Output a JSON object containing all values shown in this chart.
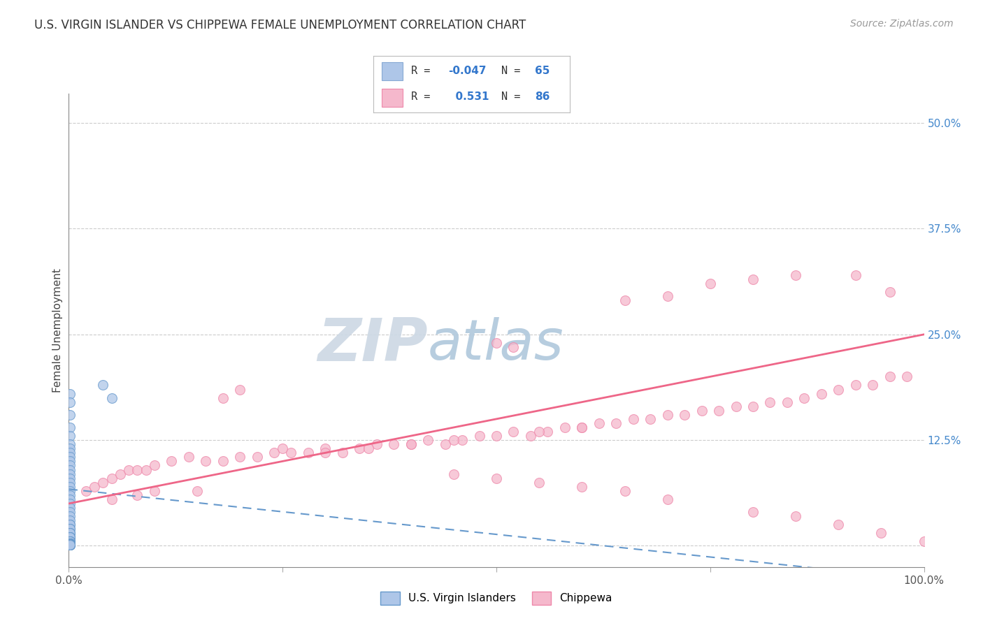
{
  "title": "U.S. VIRGIN ISLANDER VS CHIPPEWA FEMALE UNEMPLOYMENT CORRELATION CHART",
  "source": "Source: ZipAtlas.com",
  "ylabel": "Female Unemployment",
  "yticks": [
    0.0,
    0.125,
    0.25,
    0.375,
    0.5
  ],
  "ytick_labels": [
    "",
    "12.5%",
    "25.0%",
    "37.5%",
    "50.0%"
  ],
  "xlim": [
    0.0,
    1.0
  ],
  "ylim": [
    -0.02,
    0.535
  ],
  "ylim_display": [
    0.0,
    0.535
  ],
  "series1_color": "#aec6e8",
  "series2_color": "#f5b8cc",
  "series1_edge": "#6699cc",
  "series2_edge": "#ee88aa",
  "trend1_color": "#6699cc",
  "trend2_color": "#ee6688",
  "watermark_zip_color": "#d0dce8",
  "watermark_atlas_color": "#b8cce0",
  "background_color": "#ffffff",
  "grid_color": "#cccccc",
  "title_fontsize": 12,
  "source_fontsize": 10,
  "marker_size": 100,
  "legend_R1": "-0.047",
  "legend_N1": "65",
  "legend_R2": "0.531",
  "legend_N2": "86",
  "vi_x": [
    0.001,
    0.001,
    0.001,
    0.001,
    0.001,
    0.001,
    0.001,
    0.001,
    0.001,
    0.001,
    0.001,
    0.001,
    0.001,
    0.001,
    0.001,
    0.001,
    0.001,
    0.001,
    0.001,
    0.001,
    0.001,
    0.001,
    0.001,
    0.001,
    0.001,
    0.001,
    0.001,
    0.001,
    0.001,
    0.001,
    0.001,
    0.001,
    0.001,
    0.001,
    0.001,
    0.001,
    0.001,
    0.001,
    0.001,
    0.001,
    0.001,
    0.001,
    0.001,
    0.001,
    0.001,
    0.001,
    0.001,
    0.001,
    0.001,
    0.001,
    0.001,
    0.001,
    0.001,
    0.001,
    0.04,
    0.05,
    0.001,
    0.001,
    0.001,
    0.001,
    0.001,
    0.001,
    0.001,
    0.001,
    0.001
  ],
  "vi_y": [
    0.18,
    0.17,
    0.155,
    0.14,
    0.13,
    0.12,
    0.115,
    0.11,
    0.105,
    0.1,
    0.095,
    0.09,
    0.085,
    0.08,
    0.075,
    0.07,
    0.065,
    0.06,
    0.055,
    0.05,
    0.045,
    0.04,
    0.035,
    0.03,
    0.025,
    0.025,
    0.02,
    0.02,
    0.015,
    0.015,
    0.015,
    0.01,
    0.01,
    0.01,
    0.01,
    0.005,
    0.005,
    0.005,
    0.005,
    0.005,
    0.003,
    0.003,
    0.003,
    0.003,
    0.003,
    0.002,
    0.002,
    0.002,
    0.002,
    0.001,
    0.001,
    0.001,
    0.001,
    0.001,
    0.19,
    0.175,
    0.001,
    0.001,
    0.001,
    0.001,
    0.001,
    0.001,
    0.001,
    0.001,
    0.001
  ],
  "chippewa_x": [
    0.02,
    0.03,
    0.04,
    0.05,
    0.06,
    0.07,
    0.08,
    0.09,
    0.1,
    0.12,
    0.14,
    0.16,
    0.18,
    0.2,
    0.22,
    0.24,
    0.26,
    0.28,
    0.3,
    0.32,
    0.34,
    0.36,
    0.38,
    0.4,
    0.42,
    0.44,
    0.46,
    0.48,
    0.5,
    0.52,
    0.54,
    0.56,
    0.58,
    0.6,
    0.62,
    0.64,
    0.66,
    0.68,
    0.7,
    0.72,
    0.74,
    0.76,
    0.78,
    0.8,
    0.82,
    0.84,
    0.86,
    0.88,
    0.9,
    0.92,
    0.94,
    0.96,
    0.98,
    0.18,
    0.2,
    0.5,
    0.52,
    0.65,
    0.7,
    0.75,
    0.8,
    0.85,
    0.92,
    0.96,
    0.05,
    0.08,
    0.1,
    0.15,
    0.25,
    0.3,
    0.35,
    0.4,
    0.45,
    0.55,
    0.6,
    0.45,
    0.5,
    0.55,
    0.6,
    0.65,
    0.7,
    0.8,
    0.85,
    0.9,
    0.95,
    1.0
  ],
  "chippewa_y": [
    0.065,
    0.07,
    0.075,
    0.08,
    0.085,
    0.09,
    0.09,
    0.09,
    0.095,
    0.1,
    0.105,
    0.1,
    0.1,
    0.105,
    0.105,
    0.11,
    0.11,
    0.11,
    0.115,
    0.11,
    0.115,
    0.12,
    0.12,
    0.12,
    0.125,
    0.12,
    0.125,
    0.13,
    0.13,
    0.135,
    0.13,
    0.135,
    0.14,
    0.14,
    0.145,
    0.145,
    0.15,
    0.15,
    0.155,
    0.155,
    0.16,
    0.16,
    0.165,
    0.165,
    0.17,
    0.17,
    0.175,
    0.18,
    0.185,
    0.19,
    0.19,
    0.2,
    0.2,
    0.175,
    0.185,
    0.24,
    0.235,
    0.29,
    0.295,
    0.31,
    0.315,
    0.32,
    0.32,
    0.3,
    0.055,
    0.06,
    0.065,
    0.065,
    0.115,
    0.11,
    0.115,
    0.12,
    0.125,
    0.135,
    0.14,
    0.085,
    0.08,
    0.075,
    0.07,
    0.065,
    0.055,
    0.04,
    0.035,
    0.025,
    0.015,
    0.005
  ]
}
